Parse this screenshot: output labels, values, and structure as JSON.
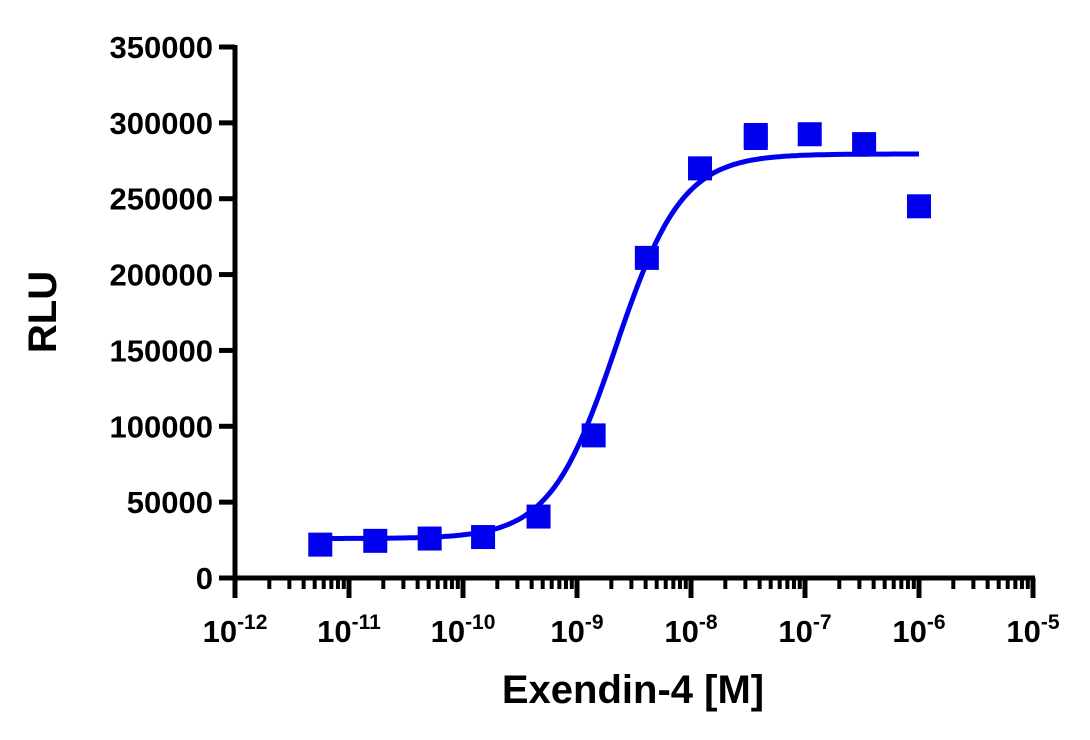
{
  "chart_data": {
    "type": "scatter",
    "xlabel": "Exendin-4 [M]",
    "ylabel": "RLU",
    "x_scale": "log",
    "xlim": [
      1e-12,
      1e-05
    ],
    "ylim": [
      0,
      350000
    ],
    "grid": false,
    "x_ticks": [
      {
        "base": "10",
        "exp": "-12"
      },
      {
        "base": "10",
        "exp": "-11"
      },
      {
        "base": "10",
        "exp": "-10"
      },
      {
        "base": "10",
        "exp": "-9"
      },
      {
        "base": "10",
        "exp": "-8"
      },
      {
        "base": "10",
        "exp": "-7"
      },
      {
        "base": "10",
        "exp": "-6"
      },
      {
        "base": "10",
        "exp": "-5"
      }
    ],
    "y_ticks": [
      "0",
      "50000",
      "100000",
      "150000",
      "200000",
      "250000",
      "300000",
      "350000"
    ],
    "color": "#0000ee",
    "points": [
      {
        "x": 5.6e-12,
        "y": 22000
      },
      {
        "x": 1.7e-11,
        "y": 24500
      },
      {
        "x": 5.1e-11,
        "y": 26000
      },
      {
        "x": 1.5e-10,
        "y": 27000
      },
      {
        "x": 4.6e-10,
        "y": 40500
      },
      {
        "x": 1.4e-09,
        "y": 94000
      },
      {
        "x": 4.1e-09,
        "y": 211000
      },
      {
        "x": 1.2e-08,
        "y": 270000
      },
      {
        "x": 3.7e-08,
        "y": 292000
      },
      {
        "x": 3.7e-08,
        "y": 290000
      },
      {
        "x": 1.1e-07,
        "y": 292500
      },
      {
        "x": 3.3e-07,
        "y": 286000
      },
      {
        "x": 1e-06,
        "y": 245000
      }
    ],
    "fit": {
      "model": "four-parameter logistic",
      "bottom": 26000,
      "top": 279500,
      "ec50": 2.2e-09,
      "hill": 1.5,
      "x_range": [
        5.6e-12,
        1e-06
      ]
    }
  }
}
